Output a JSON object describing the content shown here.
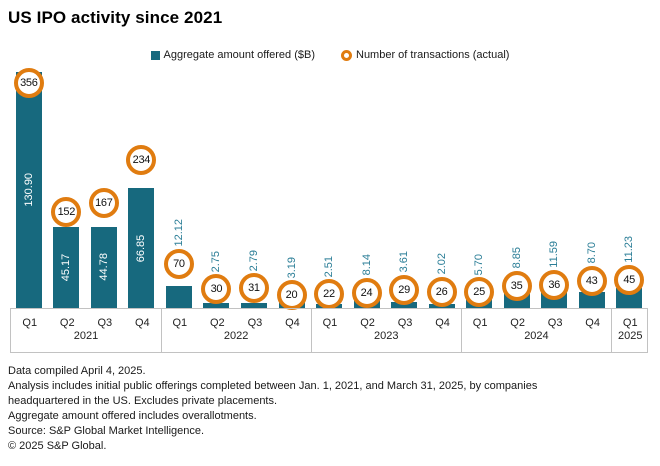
{
  "title": "US IPO activity since 2021",
  "legend": {
    "bar_label": "Aggregate amount offered ($B)",
    "point_label": "Number of transactions (actual)"
  },
  "colors": {
    "bar": "#17697E",
    "point_ring": "#E07C10",
    "outside_label": "#2B7E97",
    "axis_line": "#C2C2C2"
  },
  "chart_data": {
    "type": "bar",
    "title": "US IPO activity since 2021",
    "categories": [
      "Q1 2021",
      "Q2 2021",
      "Q3 2021",
      "Q4 2021",
      "Q1 2022",
      "Q2 2022",
      "Q3 2022",
      "Q4 2022",
      "Q1 2023",
      "Q2 2023",
      "Q3 2023",
      "Q4 2023",
      "Q1 2024",
      "Q2 2024",
      "Q3 2024",
      "Q4 2024",
      "Q1 2025"
    ],
    "series": [
      {
        "name": "Aggregate amount offered ($B)",
        "type": "bar",
        "values": [
          130.9,
          45.17,
          44.78,
          66.85,
          12.12,
          2.75,
          2.79,
          3.19,
          2.51,
          8.14,
          3.61,
          2.02,
          5.7,
          8.85,
          11.59,
          8.7,
          11.23
        ]
      },
      {
        "name": "Number of transactions (actual)",
        "type": "point",
        "values": [
          356,
          152,
          167,
          234,
          70,
          30,
          31,
          20,
          22,
          24,
          29,
          26,
          25,
          35,
          36,
          43,
          45
        ]
      }
    ],
    "value_labels": [
      "130.90",
      "45.17",
      "44.78",
      "66.85",
      "12.12",
      "2.75",
      "2.79",
      "3.19",
      "2.51",
      "8.14",
      "3.61",
      "2.02",
      "5.70",
      "8.85",
      "11.59",
      "8.70",
      "11.23"
    ],
    "groups": [
      {
        "year": "2021",
        "quarters": [
          "Q1",
          "Q2",
          "Q3",
          "Q4"
        ]
      },
      {
        "year": "2022",
        "quarters": [
          "Q1",
          "Q2",
          "Q3",
          "Q4"
        ]
      },
      {
        "year": "2023",
        "quarters": [
          "Q1",
          "Q2",
          "Q3",
          "Q4"
        ]
      },
      {
        "year": "2024",
        "quarters": [
          "Q1",
          "Q2",
          "Q3",
          "Q4"
        ]
      },
      {
        "year": "2025",
        "quarters": [
          "Q1"
        ]
      }
    ],
    "ylim_amount": [
      0,
      138
    ],
    "ylim_transactions": [
      0,
      392
    ],
    "legend_position": "top",
    "grid": false
  },
  "footnotes": [
    "Data compiled April 4, 2025.",
    "Analysis includes initial public offerings completed between Jan. 1, 2021, and March 31, 2025, by companies",
    "headquartered in the US. Excludes private placements.",
    "Aggregate amount offered includes overallotments.",
    "Source: S&P Global Market Intelligence.",
    "© 2025 S&P Global."
  ]
}
